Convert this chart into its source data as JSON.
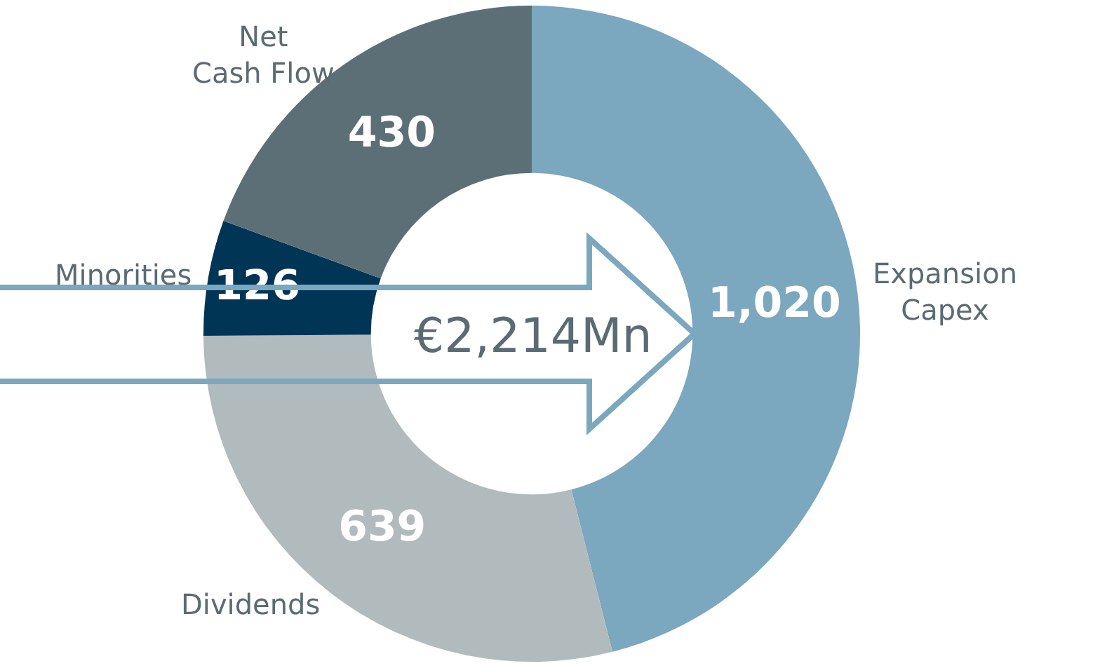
{
  "chart_data": {
    "type": "donut",
    "categories": [
      "Expansion Capex",
      "Dividends",
      "Minorities",
      "Net Cash Flow"
    ],
    "values": [
      1020,
      639,
      126,
      430
    ],
    "colors": [
      "#7ba7bf",
      "#b1babd",
      "#003555",
      "#5c6f77"
    ],
    "value_labels": [
      "1,020",
      "639",
      "126",
      "430"
    ],
    "legend": false,
    "annotations": [
      "€2,214Mn"
    ]
  }
}
